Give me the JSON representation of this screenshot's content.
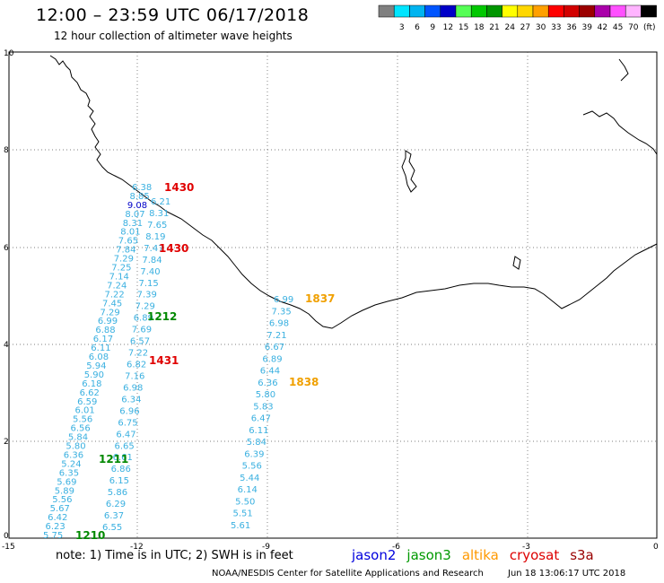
{
  "header": {
    "title": "12:00 – 23:59 UTC 06/17/2018",
    "subtitle": "12 hour collection of altimeter wave heights"
  },
  "legend": {
    "unit": "(ft)",
    "items": [
      {
        "color": "#808080",
        "label": ""
      },
      {
        "color": "#00e5ff",
        "label": "3"
      },
      {
        "color": "#00b4f0",
        "label": "6"
      },
      {
        "color": "#0055ff",
        "label": "9"
      },
      {
        "color": "#0000c8",
        "label": "12"
      },
      {
        "color": "#55ff55",
        "label": "15"
      },
      {
        "color": "#00c800",
        "label": "18"
      },
      {
        "color": "#009600",
        "label": "21"
      },
      {
        "color": "#ffff00",
        "label": "24"
      },
      {
        "color": "#ffd700",
        "label": "27"
      },
      {
        "color": "#ffa000",
        "label": "30"
      },
      {
        "color": "#ff0000",
        "label": "33"
      },
      {
        "color": "#d20000",
        "label": "36"
      },
      {
        "color": "#9b0000",
        "label": "39"
      },
      {
        "color": "#aa00aa",
        "label": "42"
      },
      {
        "color": "#ff50ff",
        "label": "45"
      },
      {
        "color": "#ffb4ff",
        "label": "70"
      },
      {
        "color": "#000000",
        "label": ""
      }
    ]
  },
  "axes": {
    "x_ticks": [
      "-15",
      "-12",
      "-9",
      "-6",
      "-3",
      "0"
    ],
    "y_ticks": [
      "0",
      "2",
      "4",
      "6",
      "8",
      "10"
    ]
  },
  "times": [
    {
      "text": "1430",
      "color": "#e00000"
    },
    {
      "text": "1430",
      "color": "#e00000"
    },
    {
      "text": "1837",
      "color": "#f0a000"
    },
    {
      "text": "1212",
      "color": "#008800"
    },
    {
      "text": "1431",
      "color": "#e00000"
    },
    {
      "text": "1838",
      "color": "#f0a000"
    },
    {
      "text": "1211",
      "color": "#008800"
    },
    {
      "text": "1210",
      "color": "#008800"
    }
  ],
  "tracks": {
    "track1": {
      "color": "#3ab0e0",
      "values": [
        "6.38",
        "8.85",
        "9.08",
        "8.07",
        "8.31",
        "8.01",
        "7.65",
        "7.84",
        "7.29",
        "7.25",
        "7.14",
        "7.24",
        "7.22",
        "7.45",
        "7.29",
        "6.99",
        "6.88",
        "6.17",
        "6.11",
        "6.08",
        "5.94",
        "5.90",
        "6.18",
        "6.62",
        "6.59",
        "6.01",
        "5.56",
        "6.56",
        "5.84",
        "5.80",
        "6.36",
        "5.24",
        "6.35",
        "5.69",
        "5.89",
        "5.56",
        "5.67",
        "6.42",
        "6.23",
        "5.75"
      ]
    },
    "track2": {
      "color": "#3ab0e0",
      "values": [
        "6.21",
        "8.31",
        "7.65",
        "8.19",
        "7.47",
        "7.84",
        "7.40",
        "7.15",
        "7.39",
        "7.29",
        "6.89",
        "7.69",
        "6.57",
        "7.22",
        "6.82",
        "7.16",
        "6.98",
        "6.34",
        "6.96",
        "6.75",
        "6.47",
        "6.65",
        "6.61",
        "6.86",
        "6.15",
        "5.86",
        "6.29",
        "6.37",
        "6.55"
      ]
    },
    "track3": {
      "color": "#3ab0e0",
      "values": [
        "6.99",
        "7.35",
        "6.98",
        "7.21",
        "6.67",
        "6.89",
        "6.44",
        "6.36",
        "5.80",
        "5.83",
        "6.47",
        "6.11",
        "5.84",
        "6.39",
        "5.56",
        "5.44",
        "6.14",
        "5.50",
        "5.51",
        "5.61"
      ]
    }
  },
  "footer": {
    "note": "note: 1) Time is in UTC; 2) SWH is in feet",
    "satellites": [
      {
        "name": "jason2",
        "color": "#0000dd"
      },
      {
        "name": "jason3",
        "color": "#009900"
      },
      {
        "name": "altika",
        "color": "#ff9900"
      },
      {
        "name": "cryosat",
        "color": "#dd0000"
      },
      {
        "name": "s3a",
        "color": "#990000"
      }
    ],
    "credit": "NOAA/NESDIS Center for Satellite Applications and Research",
    "timestamp": "Jun 18 13:06:17 UTC 2018"
  }
}
